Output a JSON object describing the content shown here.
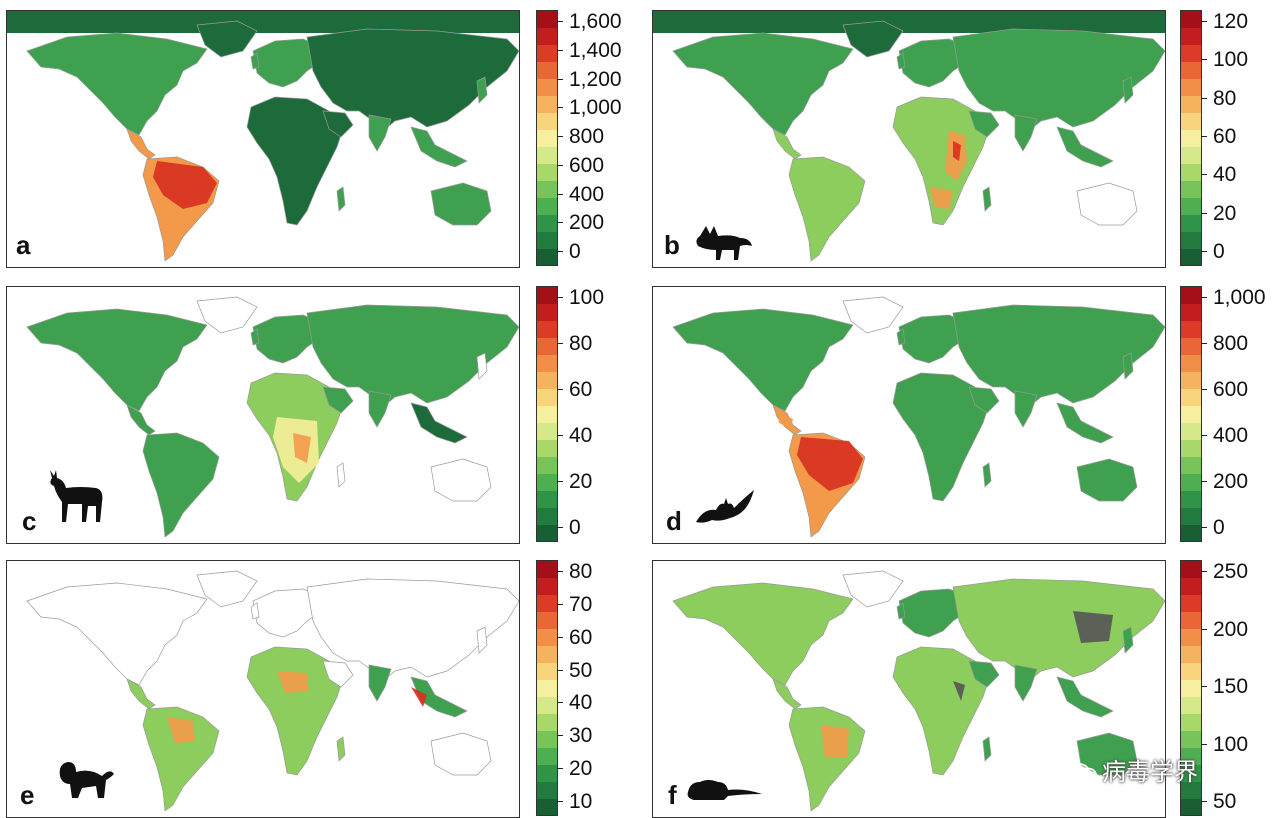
{
  "panels": [
    {
      "id": "a",
      "letter": "a",
      "animal": "none",
      "ticks": [
        "1,600",
        "1,400",
        "1,200",
        "1,000",
        "800",
        "600",
        "400",
        "200",
        "0"
      ],
      "hotspots": "amazon-strong"
    },
    {
      "id": "b",
      "letter": "b",
      "animal": "fox-icon",
      "ticks": [
        "120",
        "100",
        "80",
        "60",
        "40",
        "20",
        "0"
      ],
      "hotspots": "east-africa"
    },
    {
      "id": "c",
      "letter": "c",
      "animal": "antelope-icon",
      "ticks": [
        "100",
        "80",
        "60",
        "40",
        "20",
        "0"
      ],
      "hotspots": "africa-ungulate"
    },
    {
      "id": "d",
      "letter": "d",
      "animal": "bat-icon",
      "ticks": [
        "1,000",
        "800",
        "600",
        "400",
        "200",
        "0"
      ],
      "hotspots": "amazon-bat"
    },
    {
      "id": "e",
      "letter": "e",
      "animal": "monkey-icon",
      "ticks": [
        "80",
        "70",
        "60",
        "50",
        "40",
        "30",
        "20",
        "10"
      ],
      "hotspots": "primate"
    },
    {
      "id": "f",
      "letter": "f",
      "animal": "rodent-icon",
      "ticks": [
        "250",
        "200",
        "150",
        "100",
        "50"
      ],
      "hotspots": "rodent"
    }
  ],
  "colors": {
    "dark": "#1d6b3a",
    "mid": "#3fa04f",
    "light": "#8ccd5e",
    "yellow": "#f5f09a",
    "orange": "#f39a4a",
    "red": "#d7301f",
    "deep": "#b50f1e",
    "outline": "#9a9a9a"
  },
  "watermark": {
    "text": "病毒学界"
  }
}
